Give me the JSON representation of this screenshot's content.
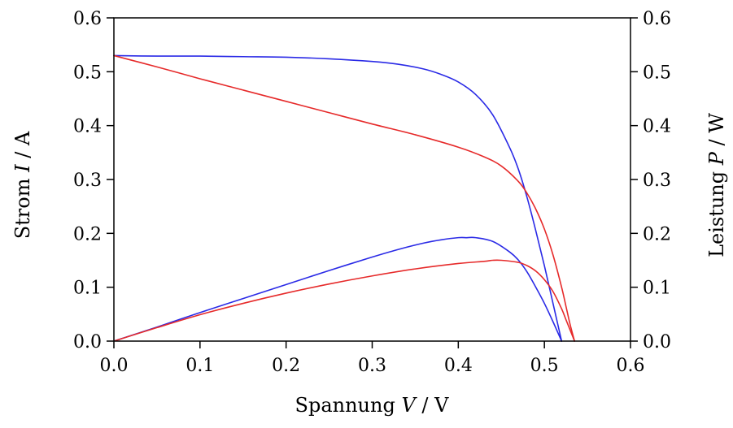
{
  "chart_data": {
    "type": "line",
    "title": "",
    "xlabel": {
      "prefix": "Spannung ",
      "var": "V",
      "suffix": " / V"
    },
    "ylabel": {
      "prefix": "Strom ",
      "var": "I",
      "suffix": " / A"
    },
    "y2label": {
      "prefix": "Leistung ",
      "var": "P",
      "suffix": " / W"
    },
    "xlim": [
      0,
      0.6
    ],
    "ylim": [
      0,
      0.6
    ],
    "y2lim": [
      0,
      0.6
    ],
    "x_ticks": [
      "0.0",
      "0.1",
      "0.2",
      "0.3",
      "0.4",
      "0.5",
      "0.6"
    ],
    "y_ticks": [
      "0.0",
      "0.1",
      "0.2",
      "0.3",
      "0.4",
      "0.5",
      "0.6"
    ],
    "y2_ticks": [
      "0.0",
      "0.1",
      "0.2",
      "0.3",
      "0.4",
      "0.5",
      "0.6"
    ],
    "grid": false,
    "legend": "none",
    "series": [
      {
        "color": "#2a2ae6",
        "axis": "left",
        "x": [
          0,
          0.05,
          0.1,
          0.15,
          0.2,
          0.25,
          0.3,
          0.33,
          0.36,
          0.38,
          0.4,
          0.42,
          0.44,
          0.46,
          0.47,
          0.48,
          0.49,
          0.5,
          0.51,
          0.52
        ],
        "y": [
          0.53,
          0.529,
          0.529,
          0.528,
          0.527,
          0.524,
          0.519,
          0.514,
          0.505,
          0.495,
          0.481,
          0.458,
          0.42,
          0.358,
          0.318,
          0.266,
          0.205,
          0.14,
          0.07,
          0.0
        ]
      },
      {
        "color": "#e62a2a",
        "axis": "left",
        "x": [
          0,
          0.05,
          0.1,
          0.15,
          0.2,
          0.25,
          0.3,
          0.35,
          0.4,
          0.43,
          0.45,
          0.47,
          0.48,
          0.49,
          0.5,
          0.51,
          0.52,
          0.525,
          0.53,
          0.535
        ],
        "y": [
          0.53,
          0.509,
          0.487,
          0.466,
          0.445,
          0.424,
          0.403,
          0.383,
          0.36,
          0.342,
          0.325,
          0.296,
          0.274,
          0.245,
          0.208,
          0.16,
          0.1,
          0.065,
          0.03,
          0.0
        ]
      },
      {
        "color": "#2a2ae6",
        "axis": "right",
        "x": [
          0,
          0.05,
          0.1,
          0.15,
          0.2,
          0.25,
          0.3,
          0.33,
          0.36,
          0.38,
          0.4,
          0.41,
          0.42,
          0.44,
          0.46,
          0.47,
          0.48,
          0.49,
          0.5,
          0.51,
          0.52
        ],
        "y": [
          0.0,
          0.026,
          0.053,
          0.079,
          0.105,
          0.131,
          0.156,
          0.17,
          0.182,
          0.188,
          0.192,
          0.192,
          0.192,
          0.185,
          0.165,
          0.15,
          0.128,
          0.1,
          0.07,
          0.036,
          0.0
        ]
      },
      {
        "color": "#e62a2a",
        "axis": "right",
        "x": [
          0,
          0.05,
          0.1,
          0.15,
          0.2,
          0.25,
          0.3,
          0.35,
          0.4,
          0.43,
          0.44,
          0.45,
          0.47,
          0.48,
          0.49,
          0.5,
          0.51,
          0.52,
          0.525,
          0.53,
          0.535
        ],
        "y": [
          0.0,
          0.025,
          0.049,
          0.07,
          0.089,
          0.106,
          0.121,
          0.134,
          0.144,
          0.148,
          0.15,
          0.15,
          0.146,
          0.14,
          0.13,
          0.114,
          0.092,
          0.06,
          0.04,
          0.02,
          0.0
        ]
      }
    ]
  }
}
